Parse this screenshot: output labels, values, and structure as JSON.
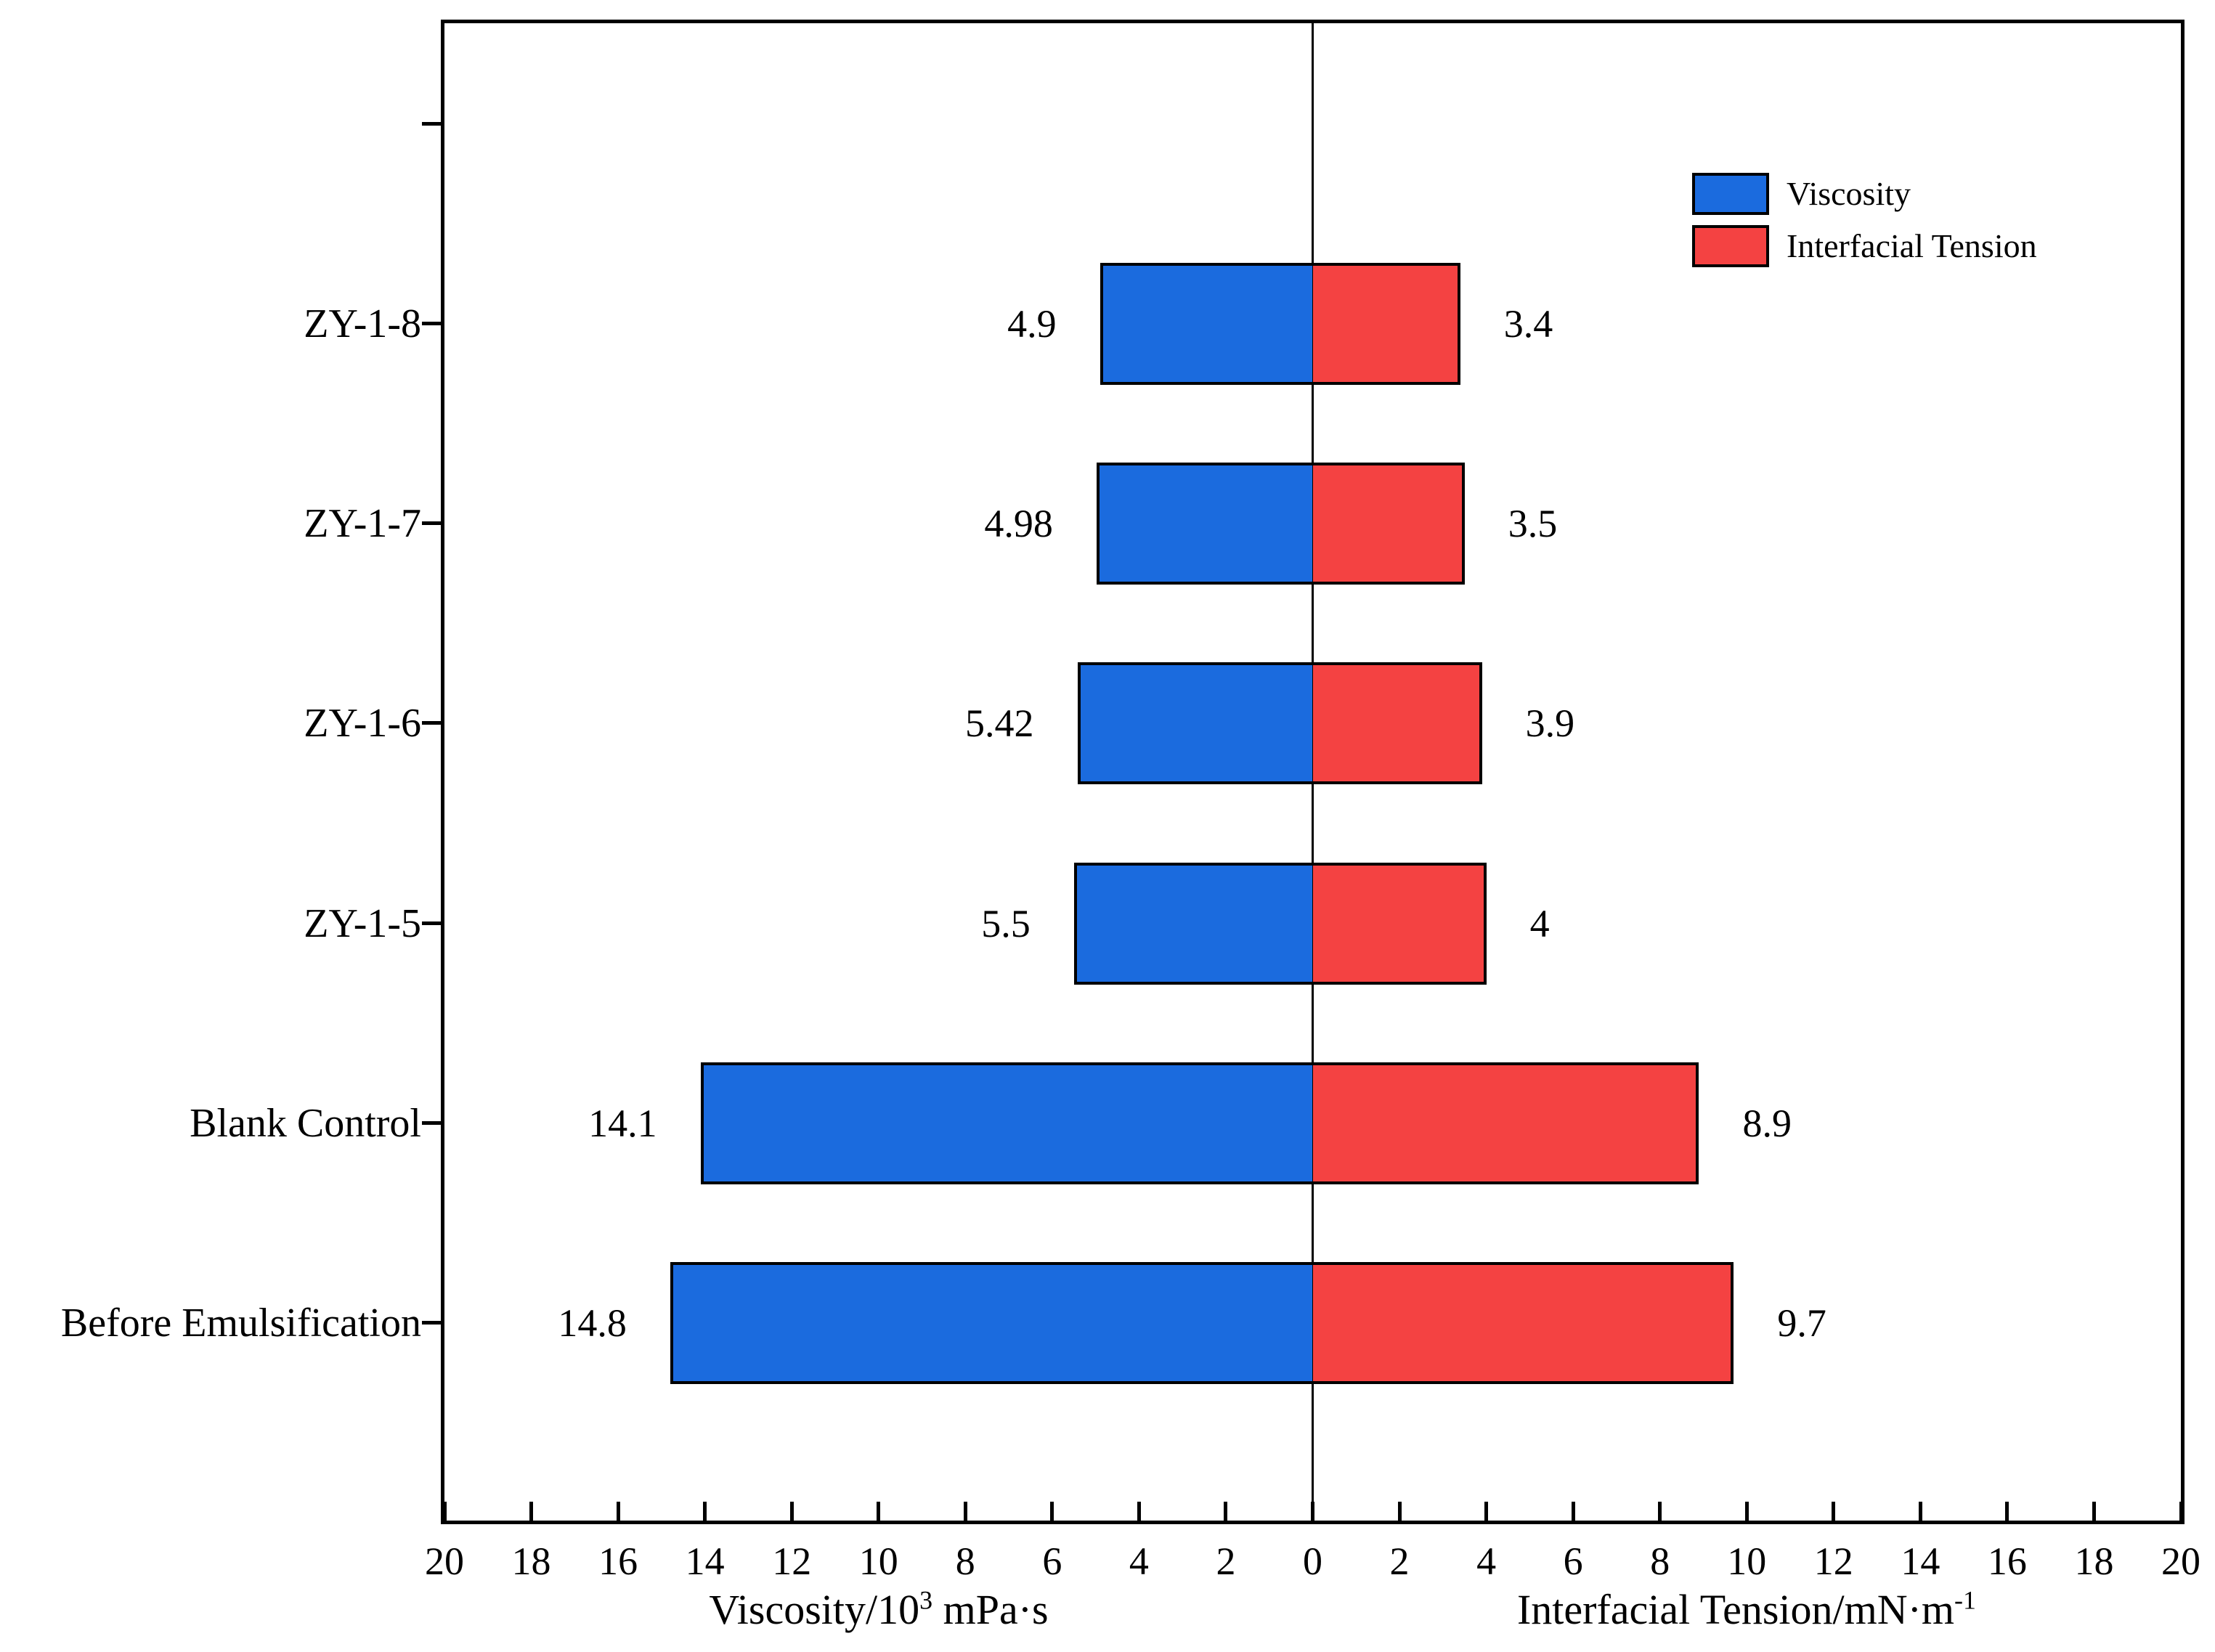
{
  "chart_data": {
    "type": "bar",
    "orientation": "horizontal-diverging",
    "title": "",
    "categories": [
      "ZY-1-8",
      "ZY-1-7",
      "ZY-1-6",
      "ZY-1-5",
      "Blank Control",
      "Before Emulsification"
    ],
    "series": [
      {
        "name": "Viscosity",
        "side": "left",
        "color": "#1b6bde",
        "values": [
          4.9,
          4.98,
          5.42,
          5.5,
          14.1,
          14.8
        ],
        "value_labels": [
          "4.9",
          "4.98",
          "5.42",
          "5.5",
          "14.1",
          "14.8"
        ]
      },
      {
        "name": "Interfacial Tension",
        "side": "right",
        "color": "#f44242",
        "values": [
          3.4,
          3.5,
          3.9,
          4,
          8.9,
          9.7
        ],
        "value_labels": [
          "3.4",
          "3.5",
          "3.9",
          "4",
          "8.9",
          "9.7"
        ]
      }
    ],
    "x_axis": {
      "range_per_side": [
        0,
        20
      ],
      "tick_step": 2,
      "tick_labels": [
        "20",
        "18",
        "16",
        "14",
        "12",
        "10",
        "8",
        "6",
        "4",
        "2",
        "0",
        "2",
        "4",
        "6",
        "8",
        "10",
        "12",
        "14",
        "16",
        "18",
        "20"
      ]
    },
    "axis_titles": {
      "left": {
        "base": "Viscosity/10",
        "sup": "3",
        "rest": "  mPa·s"
      },
      "right": {
        "base": "Interfacial Tension/mN·m",
        "sup": "-1",
        "rest": ""
      }
    },
    "legend": {
      "position": "top-right",
      "items": [
        {
          "label": "Viscosity",
          "color": "#1b6bde"
        },
        {
          "label": "Interfacial Tension",
          "color": "#f44242"
        }
      ]
    },
    "bar_border_color": "#000000",
    "background": "#ffffff",
    "grid": false
  }
}
